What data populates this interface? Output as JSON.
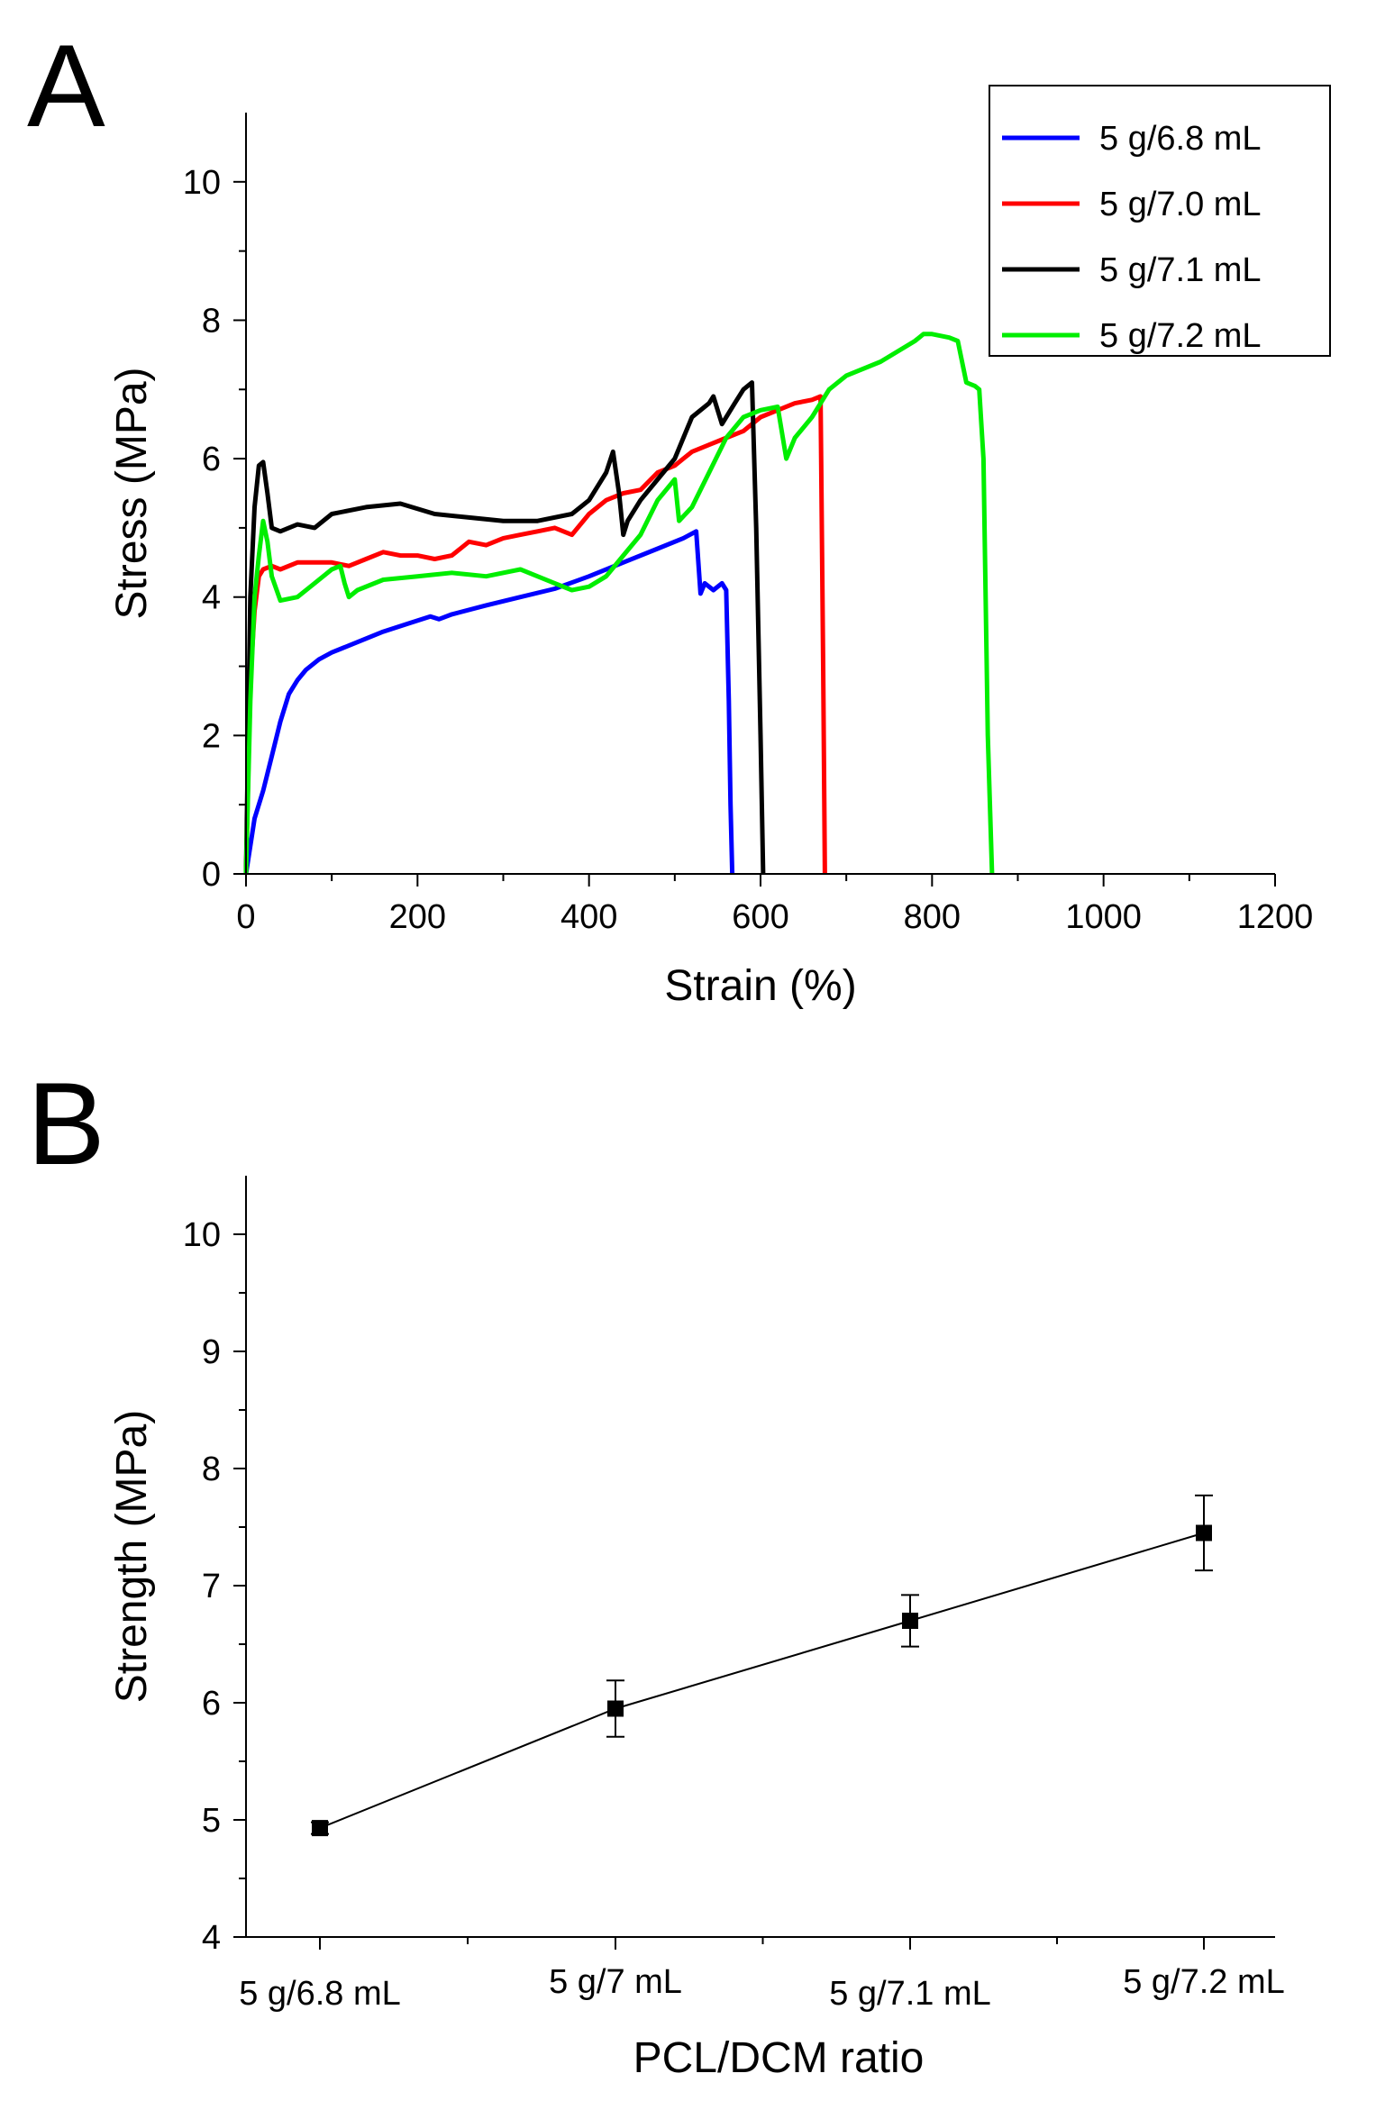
{
  "figure": {
    "panels": [
      "A",
      "B"
    ]
  },
  "chart_data": [
    {
      "panel": "A",
      "type": "line",
      "xlabel": "Strain (%)",
      "ylabel": "Stress (MPa)",
      "xlim": [
        0,
        1200
      ],
      "ylim": [
        0,
        11
      ],
      "xticks": [
        0,
        200,
        400,
        600,
        800,
        1000,
        1200
      ],
      "yticks": [
        0,
        2,
        4,
        6,
        8,
        10
      ],
      "legend_position": "top-right",
      "series": [
        {
          "name": "5 g/6.8 mL",
          "color": "#0000ff",
          "x": [
            0,
            10,
            20,
            30,
            40,
            50,
            60,
            70,
            85,
            100,
            130,
            160,
            190,
            215,
            225,
            240,
            280,
            320,
            360,
            400,
            440,
            480,
            510,
            525,
            530,
            535,
            545,
            555,
            560,
            563,
            565,
            567
          ],
          "y": [
            0,
            0.8,
            1.2,
            1.7,
            2.2,
            2.6,
            2.8,
            2.95,
            3.1,
            3.2,
            3.35,
            3.5,
            3.62,
            3.72,
            3.68,
            3.75,
            3.88,
            4.0,
            4.12,
            4.3,
            4.5,
            4.7,
            4.85,
            4.95,
            4.05,
            4.2,
            4.1,
            4.2,
            4.1,
            2.5,
            1.0,
            0
          ]
        },
        {
          "name": "5 g/7.0 mL",
          "color": "#ff0000",
          "x": [
            0,
            5,
            10,
            15,
            20,
            30,
            40,
            60,
            80,
            100,
            120,
            140,
            160,
            180,
            200,
            220,
            240,
            260,
            280,
            300,
            320,
            340,
            360,
            380,
            400,
            420,
            440,
            460,
            480,
            500,
            520,
            540,
            560,
            580,
            600,
            620,
            640,
            660,
            670,
            673,
            675
          ],
          "y": [
            0,
            2.8,
            3.8,
            4.3,
            4.4,
            4.45,
            4.4,
            4.5,
            4.5,
            4.5,
            4.45,
            4.55,
            4.65,
            4.6,
            4.6,
            4.55,
            4.6,
            4.8,
            4.75,
            4.85,
            4.9,
            4.95,
            5.0,
            4.9,
            5.2,
            5.4,
            5.5,
            5.55,
            5.8,
            5.9,
            6.1,
            6.2,
            6.3,
            6.4,
            6.6,
            6.7,
            6.8,
            6.85,
            6.9,
            3.0,
            0
          ]
        },
        {
          "name": "5 g/7.1 mL",
          "color": "#000000",
          "x": [
            0,
            5,
            10,
            15,
            20,
            25,
            30,
            40,
            60,
            80,
            100,
            140,
            180,
            220,
            260,
            300,
            340,
            380,
            400,
            420,
            428,
            435,
            440,
            445,
            460,
            480,
            500,
            520,
            540,
            545,
            555,
            570,
            580,
            590,
            595,
            600,
            603
          ],
          "y": [
            0,
            4.0,
            5.3,
            5.9,
            5.95,
            5.5,
            5.0,
            4.95,
            5.05,
            5.0,
            5.2,
            5.3,
            5.35,
            5.2,
            5.15,
            5.1,
            5.1,
            5.2,
            5.4,
            5.8,
            6.1,
            5.5,
            4.9,
            5.1,
            5.4,
            5.7,
            6.0,
            6.6,
            6.8,
            6.9,
            6.5,
            6.8,
            7.0,
            7.1,
            5.0,
            2.0,
            0
          ]
        },
        {
          "name": "5 g/7.2 mL",
          "color": "#00ee00",
          "x": [
            0,
            5,
            10,
            15,
            20,
            25,
            30,
            40,
            60,
            80,
            100,
            110,
            115,
            120,
            130,
            160,
            200,
            240,
            280,
            320,
            360,
            380,
            400,
            420,
            440,
            460,
            480,
            500,
            505,
            520,
            540,
            560,
            580,
            600,
            620,
            630,
            640,
            660,
            680,
            700,
            740,
            780,
            790,
            800,
            820,
            830,
            840,
            850,
            855,
            860,
            865,
            870
          ],
          "y": [
            0,
            2.5,
            4.0,
            4.6,
            5.1,
            4.8,
            4.3,
            3.95,
            4.0,
            4.2,
            4.4,
            4.45,
            4.2,
            4.0,
            4.1,
            4.25,
            4.3,
            4.35,
            4.3,
            4.4,
            4.2,
            4.1,
            4.15,
            4.3,
            4.6,
            4.9,
            5.4,
            5.7,
            5.1,
            5.3,
            5.8,
            6.3,
            6.6,
            6.7,
            6.75,
            6.0,
            6.3,
            6.6,
            7.0,
            7.2,
            7.4,
            7.7,
            7.8,
            7.8,
            7.75,
            7.7,
            7.1,
            7.05,
            7.0,
            6.0,
            2.0,
            0
          ]
        }
      ]
    },
    {
      "panel": "B",
      "type": "line",
      "xlabel": "PCL/DCM ratio",
      "ylabel": "Strength (MPa)",
      "ylim": [
        4,
        10.5
      ],
      "yticks": [
        4,
        5,
        6,
        7,
        8,
        9,
        10
      ],
      "categories": [
        "5 g/6.8 mL",
        "5 g/7 mL",
        "5 g/7.1 mL",
        "5 g/7.2 mL"
      ],
      "series": [
        {
          "color": "#000000",
          "values": [
            4.93,
            5.95,
            6.7,
            7.45
          ],
          "error": [
            0.05,
            0.24,
            0.22,
            0.32
          ]
        }
      ]
    }
  ]
}
